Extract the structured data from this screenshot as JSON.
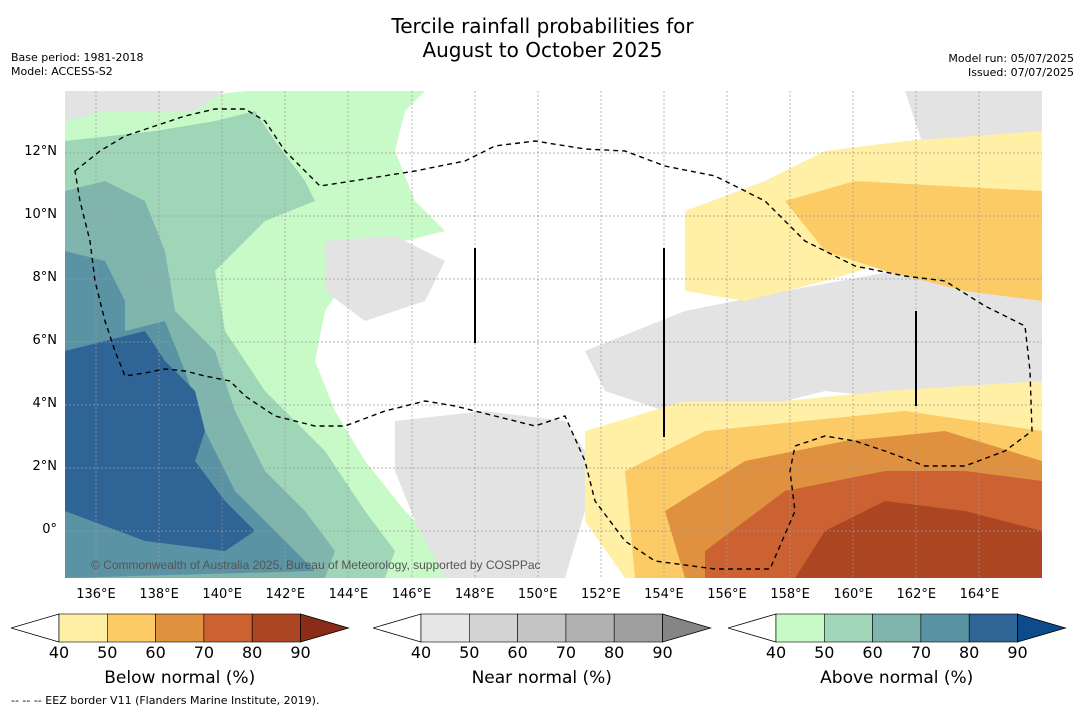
{
  "title_line1": "Tercile rainfall probabilities for",
  "title_line2": "August to October 2025",
  "base_period": "Base period: 1981-2018",
  "model": "Model: ACCESS-S2",
  "model_run": "Model run: 05/07/2025",
  "issued": "Issued: 07/07/2025",
  "copyright": "© Commonwealth of Australia 2025, Bureau of Meteorology, supported by COSPPac",
  "footnote": "--  --  -- EEZ border V11 (Flanders Marine Institute, 2019).",
  "lon_labels": [
    "136°E",
    "138°E",
    "140°E",
    "142°E",
    "144°E",
    "146°E",
    "148°E",
    "150°E",
    "152°E",
    "154°E",
    "156°E",
    "158°E",
    "160°E",
    "162°E",
    "164°E"
  ],
  "lat_labels": [
    "12°N",
    "10°N",
    "8°N",
    "6°N",
    "4°N",
    "2°N",
    "0°"
  ],
  "colorbars": [
    {
      "label": "Below normal (%)",
      "ticks": [
        "40",
        "50",
        "60",
        "70",
        "80",
        "90"
      ],
      "colors": [
        "#ffffff",
        "#fff0a5",
        "#fdcb66",
        "#e0913f",
        "#cc6231",
        "#ac4522",
        "#8a2c18"
      ]
    },
    {
      "label": "Near normal (%)",
      "ticks": [
        "40",
        "50",
        "60",
        "70",
        "80",
        "90"
      ],
      "colors": [
        "#ffffff",
        "#e6e6e6",
        "#d3d3d3",
        "#c4c4c4",
        "#b1b1b1",
        "#9f9f9f",
        "#858585"
      ]
    },
    {
      "label": "Above normal (%)",
      "ticks": [
        "40",
        "50",
        "60",
        "70",
        "80",
        "90"
      ],
      "colors": [
        "#ffffff",
        "#c8fac8",
        "#a0d6b8",
        "#80b5ad",
        "#5a93a3",
        "#2f6497",
        "#0e4b8a"
      ]
    }
  ]
}
